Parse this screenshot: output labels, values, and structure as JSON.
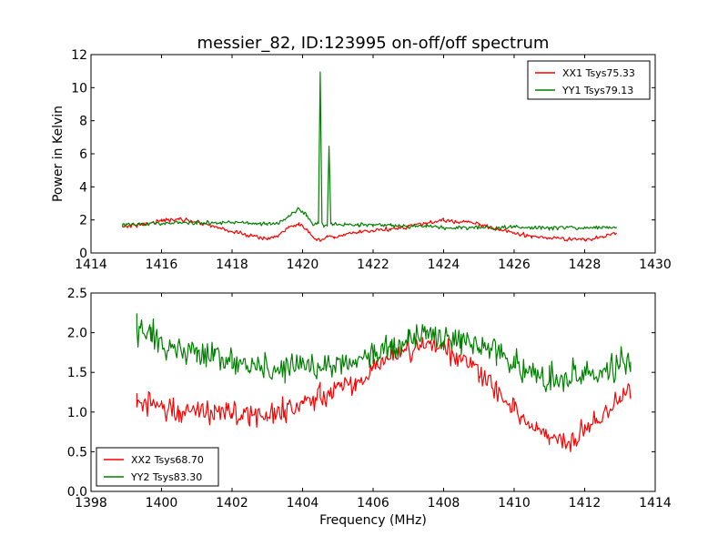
{
  "title": "messier_82, ID:123995 on-off/off spectrum",
  "chart_data": [
    {
      "type": "line",
      "title": "messier_82, ID:123995 on-off/off spectrum",
      "xlabel": "",
      "ylabel": "Power in Kelvin",
      "xlim": [
        1414,
        1430
      ],
      "ylim": [
        0,
        12
      ],
      "xticks": [
        "1414",
        "1416",
        "1418",
        "1420",
        "1422",
        "1424",
        "1426",
        "1428",
        "1430"
      ],
      "yticks": [
        "0",
        "2",
        "4",
        "6",
        "8",
        "10",
        "12"
      ],
      "legend_position": "top-right",
      "series": [
        {
          "name": "XX1 Tsys75.33",
          "color": "#ff0000",
          "x": [
            1414.9,
            1415.5,
            1416.0,
            1416.5,
            1417.0,
            1417.5,
            1418.0,
            1418.5,
            1419.0,
            1419.3,
            1419.6,
            1419.9,
            1420.1,
            1420.3,
            1420.5,
            1420.7,
            1420.9,
            1421.2,
            1421.6,
            1422.0,
            1422.5,
            1423.0,
            1423.5,
            1424.0,
            1424.5,
            1425.0,
            1425.5,
            1426.0,
            1426.5,
            1427.0,
            1427.5,
            1428.0,
            1428.5,
            1428.9
          ],
          "y": [
            1.6,
            1.75,
            1.95,
            2.05,
            1.9,
            1.6,
            1.3,
            1.05,
            0.85,
            1.05,
            1.5,
            1.8,
            1.4,
            0.9,
            0.7,
            1.0,
            0.95,
            1.1,
            1.25,
            1.35,
            1.45,
            1.6,
            1.8,
            1.95,
            1.9,
            1.75,
            1.45,
            1.2,
            1.0,
            0.9,
            0.85,
            0.8,
            0.95,
            1.2
          ]
        },
        {
          "name": "YY1 Tsys79.13",
          "color": "#008000",
          "x": [
            1414.9,
            1415.5,
            1416.0,
            1416.5,
            1417.0,
            1417.5,
            1418.0,
            1418.5,
            1419.0,
            1419.3,
            1419.6,
            1419.9,
            1420.1,
            1420.3,
            1420.45,
            1420.5,
            1420.55,
            1420.6,
            1420.7,
            1420.75,
            1420.8,
            1420.85,
            1420.9,
            1421.2,
            1421.6,
            1422.0,
            1422.5,
            1423.0,
            1423.5,
            1424.0,
            1424.5,
            1425.0,
            1425.5,
            1426.0,
            1426.5,
            1427.0,
            1427.5,
            1428.0,
            1428.5,
            1428.9
          ],
          "y": [
            1.7,
            1.75,
            1.8,
            1.85,
            1.8,
            1.8,
            1.85,
            1.8,
            1.75,
            1.8,
            2.2,
            2.7,
            2.3,
            1.7,
            1.8,
            10.9,
            1.9,
            1.6,
            1.65,
            6.5,
            1.8,
            1.7,
            1.7,
            1.75,
            1.7,
            1.7,
            1.65,
            1.6,
            1.6,
            1.55,
            1.55,
            1.55,
            1.5,
            1.55,
            1.5,
            1.5,
            1.55,
            1.5,
            1.55,
            1.55
          ]
        }
      ]
    },
    {
      "type": "line",
      "title": "",
      "xlabel": "Frequency (MHz)",
      "ylabel": "",
      "xlim": [
        1398,
        1414
      ],
      "ylim": [
        0,
        2.5
      ],
      "xticks": [
        "1398",
        "1400",
        "1402",
        "1404",
        "1406",
        "1408",
        "1410",
        "1412",
        "1414"
      ],
      "yticks": [
        "0.0",
        "0.5",
        "1.0",
        "1.5",
        "2.0",
        "2.5"
      ],
      "legend_position": "lower-left",
      "series": [
        {
          "name": "XX2 Tsys68.70",
          "color": "#ff0000",
          "x": [
            1399.3,
            1399.7,
            1400.0,
            1400.5,
            1401.0,
            1401.5,
            1402.0,
            1402.5,
            1403.0,
            1403.5,
            1404.0,
            1404.5,
            1405.0,
            1405.5,
            1406.0,
            1406.5,
            1407.0,
            1407.5,
            1408.0,
            1408.5,
            1409.0,
            1409.5,
            1410.0,
            1410.5,
            1411.0,
            1411.5,
            1412.0,
            1412.5,
            1413.0,
            1413.3
          ],
          "y": [
            1.15,
            1.1,
            1.05,
            1.0,
            1.05,
            1.0,
            1.0,
            0.95,
            0.95,
            1.0,
            1.1,
            1.2,
            1.3,
            1.4,
            1.55,
            1.7,
            1.8,
            1.85,
            1.8,
            1.65,
            1.5,
            1.3,
            1.05,
            0.8,
            0.65,
            0.65,
            0.8,
            0.95,
            1.15,
            1.3
          ]
        },
        {
          "name": "YY2 Tsys83.30",
          "color": "#008000",
          "x": [
            1399.3,
            1399.7,
            1400.0,
            1400.5,
            1401.0,
            1401.5,
            1402.0,
            1402.5,
            1403.0,
            1403.5,
            1404.0,
            1404.5,
            1405.0,
            1405.5,
            1406.0,
            1406.5,
            1407.0,
            1407.5,
            1408.0,
            1408.5,
            1409.0,
            1409.5,
            1410.0,
            1410.5,
            1411.0,
            1411.5,
            1412.0,
            1412.5,
            1413.0,
            1413.3
          ],
          "y": [
            2.05,
            1.95,
            1.85,
            1.8,
            1.75,
            1.7,
            1.65,
            1.6,
            1.55,
            1.55,
            1.6,
            1.55,
            1.6,
            1.65,
            1.75,
            1.85,
            1.9,
            1.95,
            1.95,
            1.9,
            1.85,
            1.75,
            1.6,
            1.5,
            1.45,
            1.4,
            1.45,
            1.5,
            1.6,
            1.65
          ]
        }
      ]
    }
  ]
}
